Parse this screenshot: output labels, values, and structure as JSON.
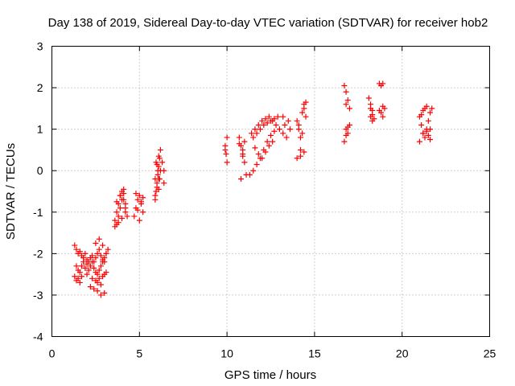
{
  "chart_data": {
    "type": "scatter",
    "title": "Day 138 of 2019, Sidereal Day-to-day VTEC variation (SDTVAR) for receiver hob2",
    "xlabel": "GPS time / hours",
    "ylabel": "SDTVAR / TECUs",
    "xlim": [
      0,
      25
    ],
    "ylim": [
      -4,
      3
    ],
    "xticks": [
      0,
      5,
      10,
      15,
      20,
      25
    ],
    "yticks": [
      -4,
      -3,
      -2,
      -1,
      0,
      1,
      2,
      3
    ],
    "grid": true,
    "marker": "+",
    "color": "#ff0000",
    "series": [
      {
        "name": "SDTVAR",
        "x": [
          1.3,
          1.4,
          1.5,
          1.6,
          1.7,
          1.8,
          1.9,
          2.0,
          2.1,
          2.2,
          2.3,
          2.4,
          2.5,
          2.6,
          2.7,
          2.8,
          2.9,
          3.0,
          3.1,
          3.2,
          1.4,
          1.5,
          1.6,
          1.7,
          1.8,
          1.9,
          2.0,
          2.1,
          2.2,
          2.3,
          2.4,
          2.5,
          2.6,
          2.7,
          2.8,
          2.9,
          3.0,
          3.1,
          1.3,
          1.4,
          1.5,
          1.6,
          1.7,
          2.0,
          2.3,
          2.5,
          2.6,
          2.7,
          2.8,
          2.9,
          3.0,
          3.1,
          2.2,
          2.4,
          2.6,
          2.8,
          3.0,
          2.5,
          2.7,
          2.9,
          3.6,
          3.7,
          3.8,
          3.9,
          4.0,
          4.1,
          4.2,
          4.3,
          3.7,
          3.8,
          3.9,
          4.0,
          4.1,
          4.2,
          3.6,
          3.8,
          4.0,
          4.2,
          3.7,
          3.9,
          4.1,
          4.7,
          4.8,
          4.9,
          5.0,
          5.1,
          5.2,
          4.8,
          5.0,
          5.2,
          4.9,
          5.1,
          5.9,
          5.95,
          6.0,
          6.05,
          6.1,
          6.15,
          6.2,
          5.9,
          6.0,
          6.1,
          6.2,
          5.95,
          6.05,
          6.15,
          5.9,
          6.0,
          6.1,
          6.4,
          6.4,
          6.1,
          6.3,
          9.9,
          9.95,
          10.0,
          10.0,
          9.9,
          10.7,
          10.8,
          10.9,
          11.0,
          11.1,
          10.8,
          10.9,
          11.0,
          10.7,
          10.9,
          11.4,
          11.6,
          11.8,
          12.0,
          12.2,
          12.4,
          12.6,
          12.8,
          13.0,
          13.2,
          11.5,
          11.7,
          11.9,
          12.1,
          12.3,
          12.5,
          12.7,
          12.9,
          11.6,
          11.8,
          12.0,
          12.2,
          12.4,
          12.6,
          11.3,
          11.5,
          11.7,
          11.9,
          12.1,
          12.3,
          12.5,
          12.7,
          13.3,
          13.5,
          13.6,
          13.4,
          13.2,
          14.0,
          14.1,
          14.2,
          14.3,
          14.4,
          14.5,
          14.1,
          14.3,
          14.5,
          14.2,
          14.4,
          14.0,
          14.2,
          14.4,
          16.7,
          16.8,
          16.9,
          17.0,
          16.8,
          16.9,
          16.7,
          16.8,
          16.9,
          17.0,
          16.8,
          18.1,
          18.2,
          18.3,
          18.2,
          18.3,
          18.4,
          18.3,
          18.2,
          18.7,
          18.8,
          18.9,
          19.0,
          18.8,
          18.9,
          18.7,
          18.9,
          21.0,
          21.1,
          21.2,
          21.3,
          21.4,
          21.5,
          21.6,
          21.7,
          21.1,
          21.2,
          21.3,
          21.4,
          21.5,
          21.6,
          21.0,
          21.2,
          21.4,
          21.6
        ],
        "y": [
          -1.8,
          -1.9,
          -2.0,
          -1.95,
          -2.05,
          -2.1,
          -2.0,
          -2.15,
          -2.2,
          -2.1,
          -2.05,
          -2.2,
          -2.1,
          -2.0,
          -1.9,
          -2.05,
          -2.15,
          -2.2,
          -2.0,
          -1.9,
          -2.3,
          -2.4,
          -2.45,
          -2.3,
          -2.2,
          -2.35,
          -2.25,
          -2.4,
          -2.3,
          -2.2,
          -2.35,
          -2.45,
          -2.5,
          -2.4,
          -2.3,
          -2.2,
          -2.1,
          -2.0,
          -2.55,
          -2.65,
          -2.6,
          -2.7,
          -2.55,
          -2.5,
          -2.6,
          -2.65,
          -2.7,
          -2.6,
          -2.75,
          -2.55,
          -2.5,
          -2.45,
          -2.8,
          -2.85,
          -2.9,
          -3.0,
          -2.95,
          -1.75,
          -1.65,
          -1.8,
          -1.2,
          -1.0,
          -0.8,
          -0.6,
          -0.5,
          -0.7,
          -0.9,
          -1.1,
          -1.3,
          -1.1,
          -0.9,
          -0.7,
          -0.55,
          -0.8,
          -1.35,
          -1.25,
          -1.15,
          -1.0,
          -0.75,
          -0.6,
          -0.45,
          -1.1,
          -0.9,
          -0.7,
          -0.6,
          -0.8,
          -1.0,
          -0.55,
          -1.2,
          -0.65,
          -0.95,
          -0.75,
          -0.7,
          -0.5,
          -0.3,
          -0.1,
          0.1,
          0.3,
          0.5,
          -0.6,
          -0.4,
          -0.2,
          0.0,
          0.2,
          0.0,
          -0.2,
          -0.2,
          0.15,
          0.35,
          -0.3,
          0.0,
          -0.45,
          0.2,
          0.6,
          0.4,
          0.2,
          0.8,
          0.5,
          0.8,
          0.6,
          0.4,
          0.2,
          -0.1,
          -0.2,
          0.5,
          0.7,
          0.65,
          0.35,
          0.9,
          1.0,
          1.1,
          1.2,
          1.25,
          1.3,
          1.2,
          1.1,
          1.0,
          0.9,
          0.8,
          0.9,
          1.0,
          1.1,
          1.15,
          1.2,
          1.25,
          1.3,
          0.55,
          0.4,
          0.3,
          0.45,
          0.6,
          0.7,
          -0.1,
          0.0,
          0.15,
          0.3,
          0.5,
          0.7,
          0.85,
          0.95,
          1.1,
          1.2,
          1.0,
          0.8,
          1.3,
          1.2,
          1.0,
          0.8,
          1.4,
          1.6,
          1.65,
          1.1,
          0.9,
          1.3,
          0.35,
          0.45,
          0.3,
          0.5,
          1.5,
          2.05,
          1.9,
          1.7,
          1.5,
          1.0,
          0.9,
          0.7,
          0.85,
          1.05,
          1.1,
          1.6,
          1.75,
          1.6,
          1.45,
          1.3,
          1.2,
          1.25,
          1.35,
          1.5,
          2.1,
          2.05,
          2.1,
          1.5,
          1.4,
          1.55,
          1.45,
          1.3,
          1.3,
          1.1,
          0.9,
          0.8,
          1.0,
          1.2,
          1.4,
          1.5,
          1.35,
          1.45,
          1.5,
          1.55,
          0.85,
          0.75,
          0.7,
          0.9,
          0.95,
          1.0
        ]
      }
    ]
  }
}
